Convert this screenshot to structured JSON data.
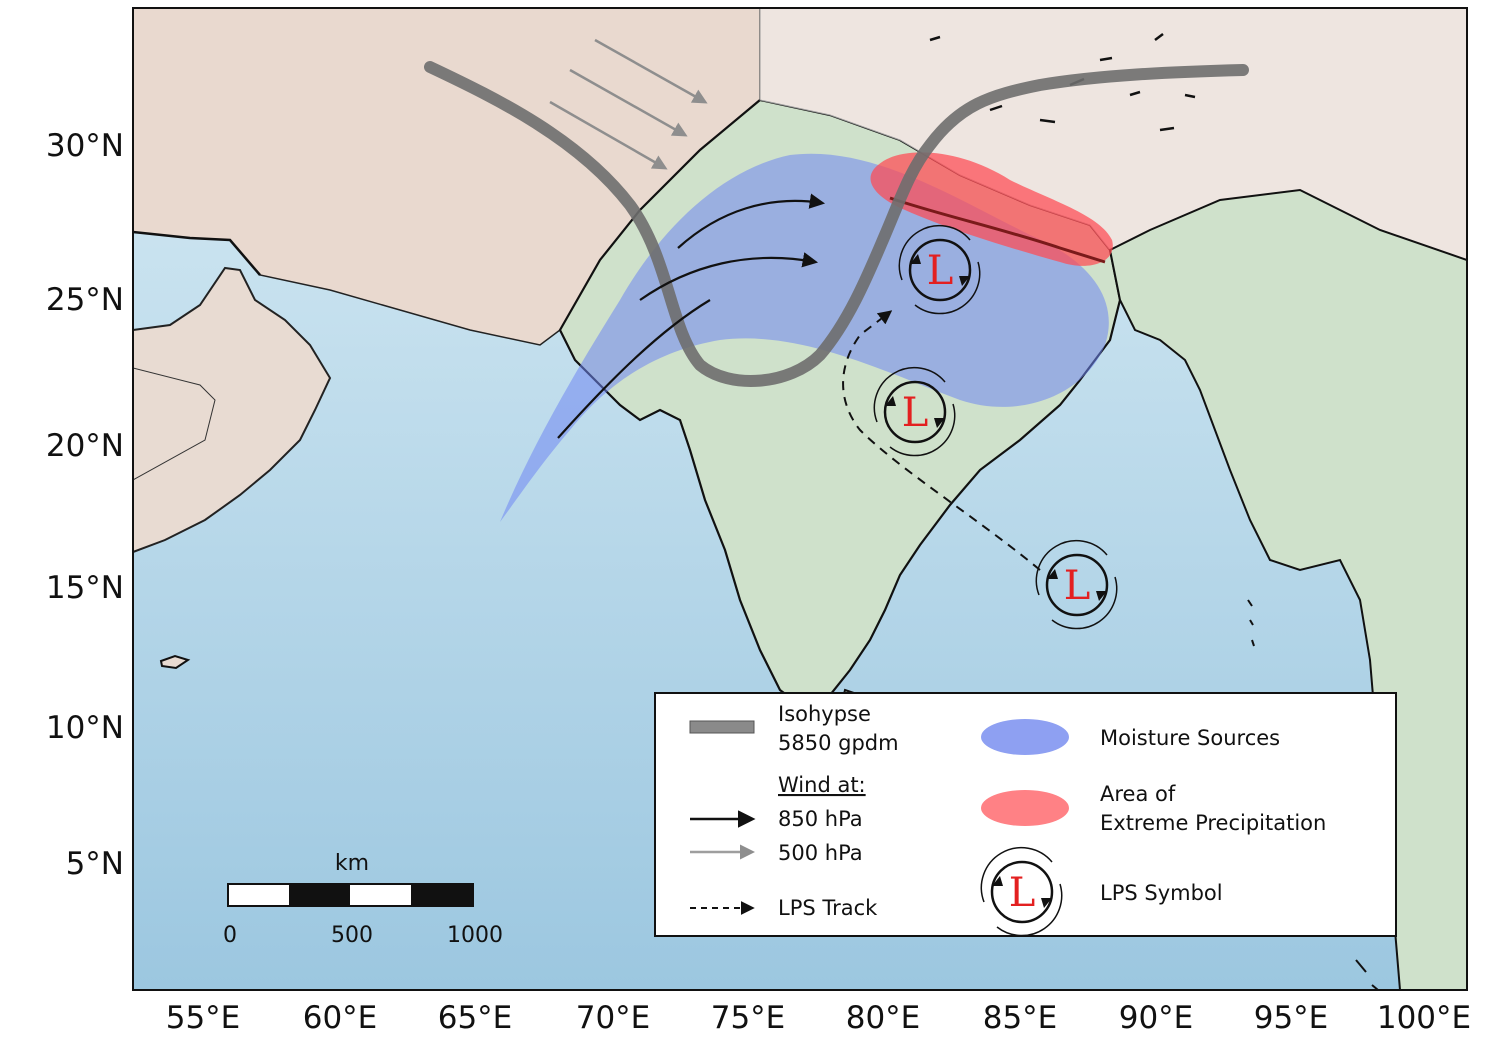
{
  "map": {
    "lat_ticks": [
      "30°N",
      "25°N",
      "20°N",
      "15°N",
      "10°N",
      "5°N"
    ],
    "lon_ticks": [
      "55°E",
      "60°E",
      "65°E",
      "70°E",
      "75°E",
      "80°E",
      "85°E",
      "90°E",
      "95°E",
      "100°E"
    ],
    "colors": {
      "ocean": "#a9d0e6",
      "land": "#c9ddc7",
      "arid_land": "#e6d3c7",
      "moisture": "#7a8ff0",
      "precipitation": "#ff5a5f",
      "isohypse": "#6e6e6e"
    }
  },
  "legend": {
    "isohypse_line1": "Isohypse",
    "isohypse_line2": "5850 gpdm",
    "wind_heading": "Wind at:",
    "wind_850": "850 hPa",
    "wind_500": "500 hPa",
    "lps_track": "LPS Track",
    "moisture": "Moisture Sources",
    "precip_line1": "Area of",
    "precip_line2": "Extreme Precipitation",
    "lps_symbol": "LPS Symbol"
  },
  "scale_bar": {
    "unit": "km",
    "ticks": [
      "0",
      "500",
      "1000"
    ]
  },
  "symbols": {
    "lps_letter": "L"
  }
}
